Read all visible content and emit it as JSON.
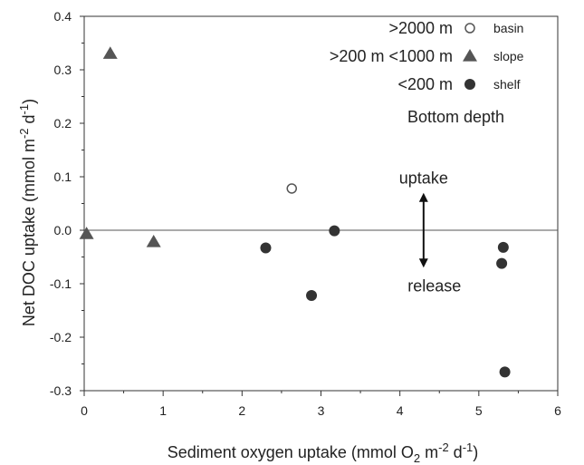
{
  "chart_data": {
    "type": "scatter",
    "title": "",
    "xlabel": {
      "pre": "Sediment oxygen uptake (mmol O",
      "sub": "2",
      "mid": " m",
      "sup1": "-2",
      "mid2": " d",
      "sup2": "-1",
      "post": ")"
    },
    "ylabel": {
      "pre": "Net DOC uptake (mmol m",
      "sup1": "-2",
      "mid": " d",
      "sup2": "-1",
      "post": ")"
    },
    "xlim": [
      0,
      6
    ],
    "ylim": [
      -0.3,
      0.4
    ],
    "xticks": [
      "0",
      "1",
      "2",
      "3",
      "4",
      "5",
      "6"
    ],
    "yticks": [
      "-0.3",
      "-0.2",
      "-0.1",
      "0.0",
      "0.1",
      "0.2",
      "0.3",
      "0.4"
    ],
    "grid": false,
    "reference_line_y": 0,
    "legend": {
      "title": "Bottom depth",
      "placement": "top-right",
      "entries": [
        {
          "depth": ">2000 m",
          "label": "basin",
          "marker": "open-circle"
        },
        {
          "depth": ">200 m <1000 m",
          "label": "slope",
          "marker": "filled-triangle"
        },
        {
          "depth": "<200 m",
          "label": "shelf",
          "marker": "filled-circle"
        }
      ]
    },
    "series": [
      {
        "name": "basin",
        "marker": "open-circle",
        "color": "#555555",
        "points": [
          {
            "x": 2.63,
            "y": 0.078
          }
        ]
      },
      {
        "name": "slope",
        "marker": "filled-triangle",
        "color": "#555555",
        "points": [
          {
            "x": 0.03,
            "y": -0.007
          },
          {
            "x": 0.33,
            "y": 0.33
          },
          {
            "x": 0.88,
            "y": -0.022
          }
        ]
      },
      {
        "name": "shelf",
        "marker": "filled-circle",
        "color": "#333333",
        "points": [
          {
            "x": 2.3,
            "y": -0.033
          },
          {
            "x": 2.88,
            "y": -0.122
          },
          {
            "x": 3.17,
            "y": -0.001
          },
          {
            "x": 5.29,
            "y": -0.062
          },
          {
            "x": 5.31,
            "y": -0.032
          },
          {
            "x": 5.33,
            "y": -0.265
          }
        ]
      }
    ],
    "annotations": {
      "uptake": "uptake",
      "release": "release",
      "arrow_x": 4.3,
      "arrow_y": [
        0.07,
        -0.07
      ]
    }
  }
}
